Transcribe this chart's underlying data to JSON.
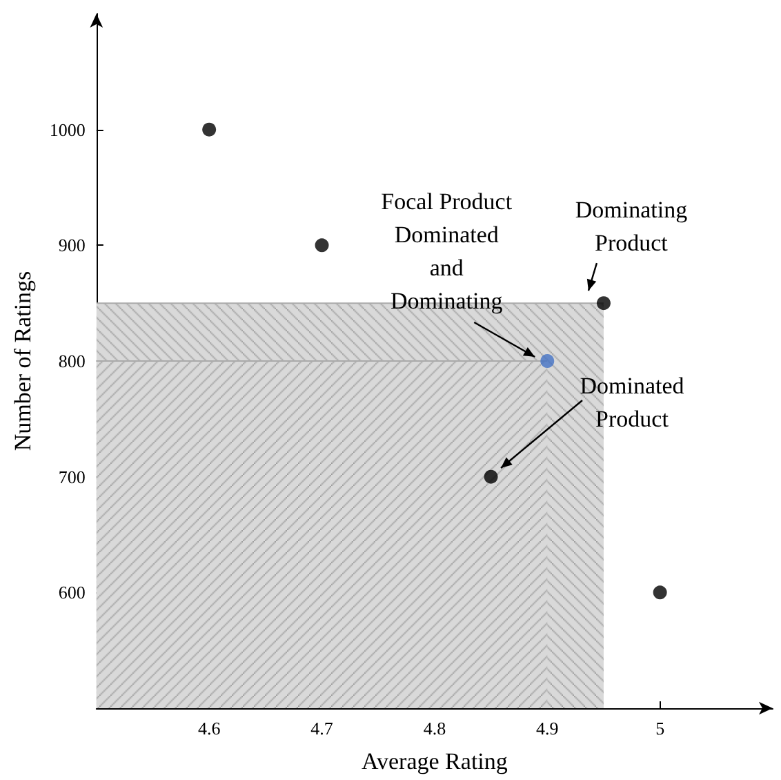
{
  "chart_data": {
    "type": "scatter",
    "xlabel": "Average Rating",
    "ylabel": "Number of Ratings",
    "xlim": [
      4.5,
      5.1
    ],
    "ylim": [
      500,
      1100
    ],
    "xticks": [
      4.6,
      4.7,
      4.8,
      4.9,
      5
    ],
    "yticks": [
      600,
      700,
      800,
      900,
      1000
    ],
    "grid": false,
    "marker": "circle",
    "series": [
      {
        "type": "area",
        "color": "#d9d9d9",
        "marker": "none",
        "x": [
          4.5,
          4.95
        ],
        "values": [
          850,
          850
        ]
      },
      {
        "type": "area",
        "color": "#d9d9d9",
        "marker": "none",
        "x": [
          4.5,
          4.9
        ],
        "values": [
          800,
          800
        ]
      },
      {
        "x": [
          4.6,
          4.7,
          4.95,
          4.9,
          4.85,
          5
        ],
        "values": [
          1000,
          900,
          850,
          800,
          700,
          600
        ],
        "colors": [
          "#000000",
          "#000000",
          "#000000",
          "#4472c4",
          "#000000",
          "#000000"
        ]
      }
    ],
    "annotations": [
      {
        "text": "Focal Product\nDominated\nand\nDominating",
        "x": 4.9,
        "y": 800
      },
      {
        "text": "Dominating\nProduct",
        "x": 4.95,
        "y": 850
      },
      "Dominated\nProduct"
    ]
  }
}
